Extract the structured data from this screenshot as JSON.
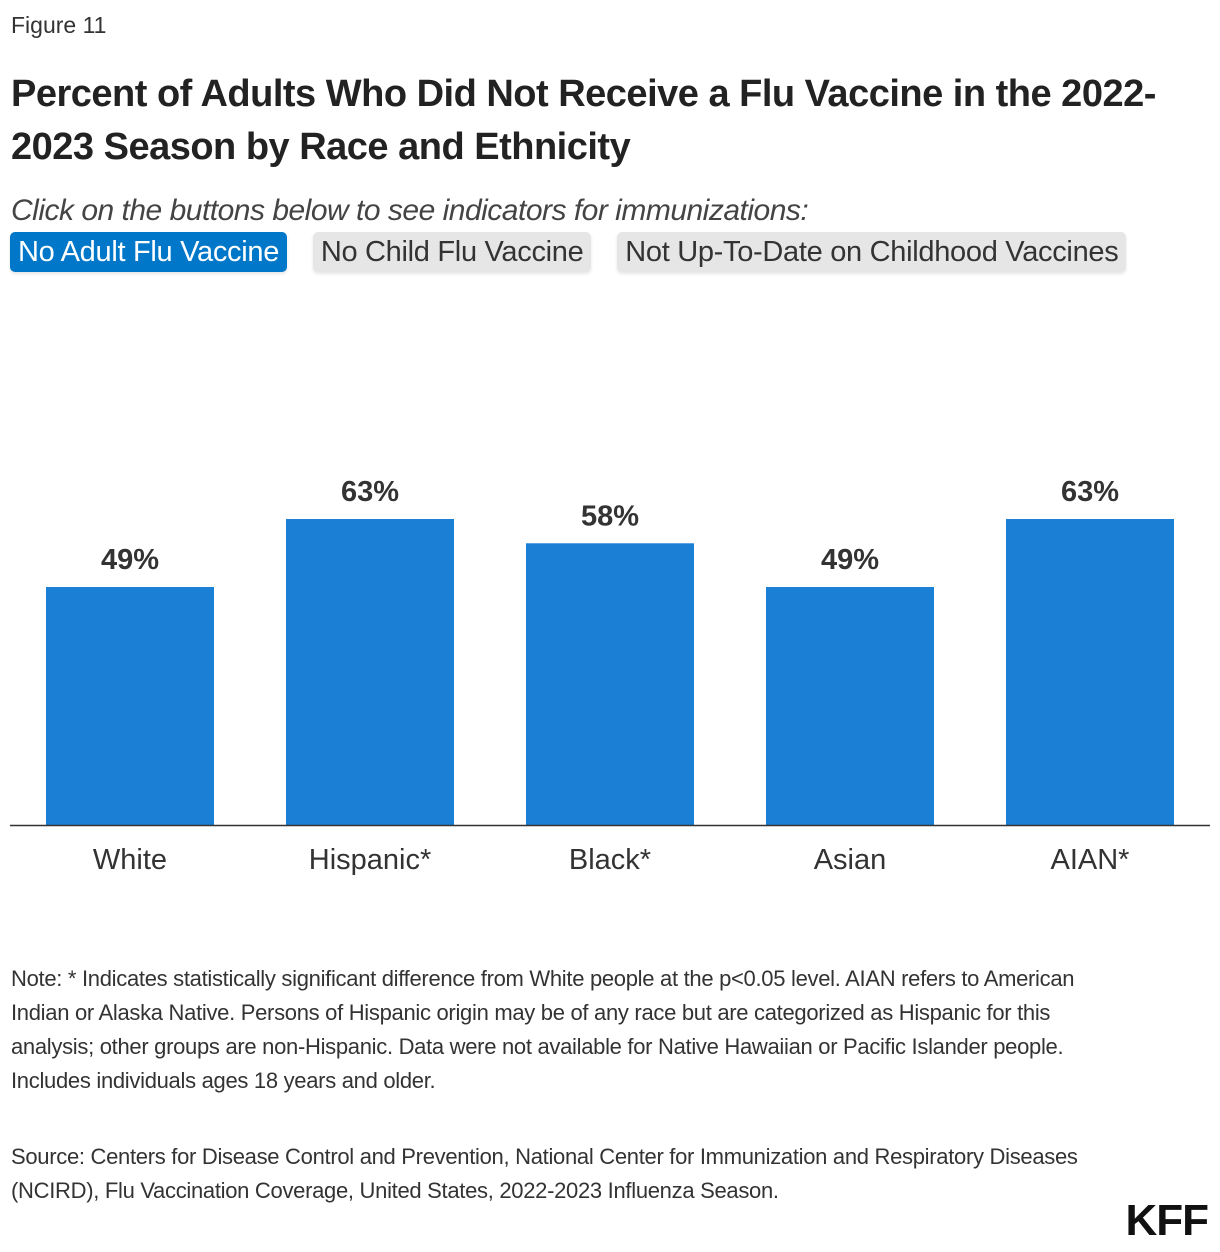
{
  "figure_label": "Figure 11",
  "title": "Percent of Adults Who Did Not Receive a Flu Vaccine in the 2022-2023 Season by Race and Ethnicity",
  "instruction": "Click on the buttons below to see indicators for immunizations:",
  "buttons": [
    {
      "label": "No Adult Flu Vaccine",
      "active": true
    },
    {
      "label": "No Child Flu Vaccine",
      "active": false
    },
    {
      "label": "Not Up-To-Date on Childhood Vaccines",
      "active": false
    }
  ],
  "chart_data": {
    "type": "bar",
    "categories": [
      "White",
      "Hispanic*",
      "Black*",
      "Asian",
      "AIAN*"
    ],
    "values": [
      49,
      63,
      58,
      49,
      63
    ],
    "data_labels": [
      "49%",
      "63%",
      "58%",
      "49%",
      "63%"
    ],
    "ylim": [
      0,
      100
    ],
    "grid": false,
    "bar_color": "#1b7fd6"
  },
  "note": "Note: * Indicates statistically significant difference from White people at the p<0.05 level. AIAN refers to American Indian or Alaska Native. Persons of Hispanic origin may be of any race but are categorized as Hispanic for this analysis; other groups are non-Hispanic. Data were not available for Native Hawaiian or Pacific Islander people. Includes individuals ages 18 years and older.",
  "source": "Source: Centers for Disease Control and Prevention, National Center for Immunization and Respiratory Diseases (NCIRD), Flu Vaccination Coverage, United States, 2022-2023 Influenza Season.",
  "logo": "KFF",
  "colors": {
    "active_button": "#0077c8",
    "inactive_button": "#e6e6e6"
  }
}
